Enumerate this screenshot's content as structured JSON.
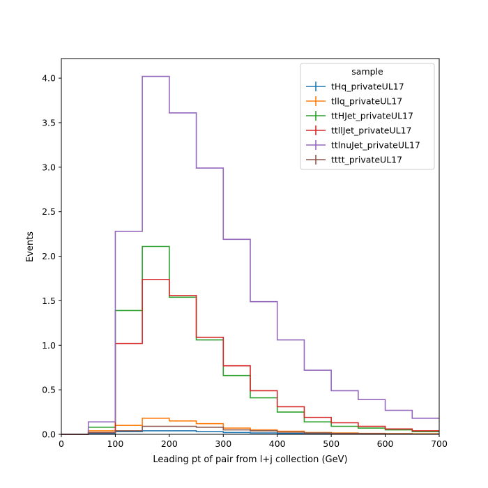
{
  "chart_data": {
    "type": "histogram-step",
    "xlabel": "Leading pt of pair from l+j collection (GeV)",
    "ylabel": "Events",
    "xlim": [
      0,
      700
    ],
    "ylim": [
      0,
      4.22
    ],
    "x_ticks": [
      0,
      100,
      200,
      300,
      400,
      500,
      600,
      700
    ],
    "y_ticks": [
      0.0,
      0.5,
      1.0,
      1.5,
      2.0,
      2.5,
      3.0,
      3.5,
      4.0
    ],
    "x_tick_labels": [
      "0",
      "100",
      "200",
      "300",
      "400",
      "500",
      "600",
      "700"
    ],
    "y_tick_labels": [
      "0.0",
      "0.5",
      "1.0",
      "1.5",
      "2.0",
      "2.5",
      "3.0",
      "3.5",
      "4.0"
    ],
    "bin_edges": [
      0,
      50,
      100,
      150,
      200,
      250,
      300,
      350,
      400,
      450,
      500,
      550,
      600,
      650,
      700
    ],
    "grid": false,
    "legend": {
      "title": "sample",
      "placement": "top-right"
    },
    "series": [
      {
        "name": "tHq_privateUL17",
        "color": "#1f77b4",
        "values": [
          0.0,
          0.01,
          0.03,
          0.04,
          0.04,
          0.03,
          0.02,
          0.015,
          0.01,
          0.008,
          0.006,
          0.005,
          0.004,
          0.003
        ]
      },
      {
        "name": "tllq_privateUL17",
        "color": "#ff7f0e",
        "values": [
          0.0,
          0.04,
          0.1,
          0.18,
          0.15,
          0.12,
          0.07,
          0.05,
          0.035,
          0.02,
          0.015,
          0.01,
          0.008,
          0.006
        ]
      },
      {
        "name": "ttHJet_privateUL17",
        "color": "#2ca02c",
        "values": [
          0.0,
          0.08,
          1.39,
          2.11,
          1.54,
          1.06,
          0.66,
          0.41,
          0.25,
          0.14,
          0.09,
          0.07,
          0.05,
          0.03
        ]
      },
      {
        "name": "ttllJet_privateUL17",
        "color": "#d62728",
        "values": [
          0.0,
          0.02,
          1.02,
          1.74,
          1.56,
          1.09,
          0.77,
          0.49,
          0.31,
          0.19,
          0.13,
          0.09,
          0.06,
          0.04
        ]
      },
      {
        "name": "ttlnuJet_privateUL17",
        "color": "#9467bd",
        "values": [
          0.0,
          0.14,
          2.28,
          4.02,
          3.61,
          2.99,
          2.19,
          1.49,
          1.06,
          0.72,
          0.49,
          0.39,
          0.27,
          0.18
        ]
      },
      {
        "name": "tttt_privateUL17",
        "color": "#8c564b",
        "values": [
          0.0,
          0.02,
          0.04,
          0.09,
          0.09,
          0.08,
          0.05,
          0.04,
          0.025,
          0.015,
          0.01,
          0.008,
          0.005,
          0.003
        ]
      }
    ]
  }
}
